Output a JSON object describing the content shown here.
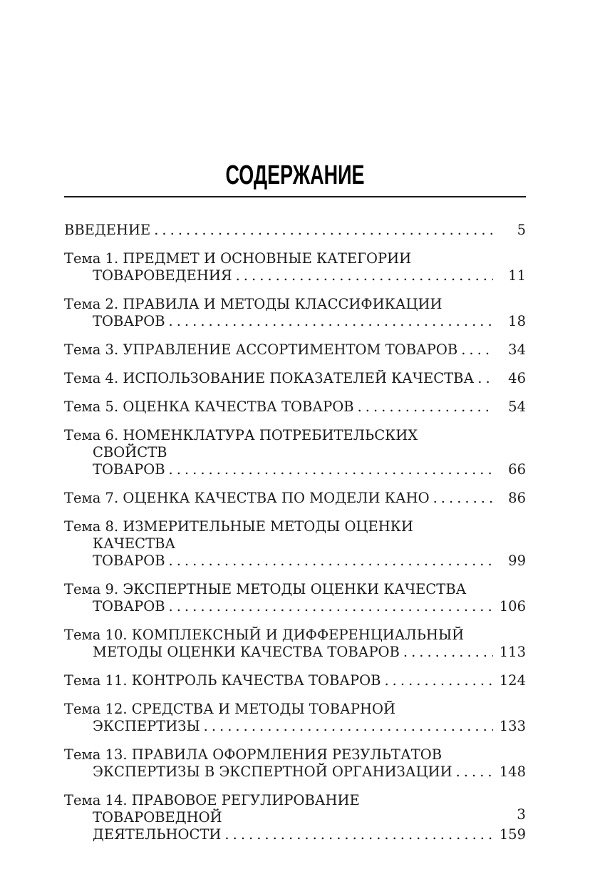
{
  "document": {
    "title": "СОДЕРЖАНИЕ",
    "folio": "3"
  },
  "colors": {
    "text": "#1a1a1a",
    "background": "#ffffff",
    "rule": "#1a1a1a"
  },
  "toc": {
    "entries": [
      {
        "lines": [
          "ВВЕДЕНИЕ"
        ],
        "page": "5"
      },
      {
        "lines": [
          "Тема 1. ПРЕДМЕТ И ОСНОВНЫЕ КАТЕГОРИИ",
          "ТОВАРОВЕДЕНИЯ"
        ],
        "page": "11"
      },
      {
        "lines": [
          "Тема 2. ПРАВИЛА И МЕТОДЫ КЛАССИФИКАЦИИ",
          "ТОВАРОВ"
        ],
        "page": "18"
      },
      {
        "lines": [
          "Тема 3. УПРАВЛЕНИЕ АССОРТИМЕНТОМ ТОВАРОВ"
        ],
        "page": "34"
      },
      {
        "lines": [
          "Тема 4. ИСПОЛЬЗОВАНИЕ ПОКАЗАТЕЛЕЙ КАЧЕСТВА"
        ],
        "page": "46"
      },
      {
        "lines": [
          "Тема 5. ОЦЕНКА КАЧЕСТВА ТОВАРОВ"
        ],
        "page": "54"
      },
      {
        "lines": [
          "Тема 6. НОМЕНКЛАТУРА ПОТРЕБИТЕЛЬСКИХ СВОЙСТВ",
          "ТОВАРОВ"
        ],
        "page": "66"
      },
      {
        "lines": [
          "Тема 7. ОЦЕНКА КАЧЕСТВА ПО МОДЕЛИ КАНО"
        ],
        "page": "86"
      },
      {
        "lines": [
          "Тема 8. ИЗМЕРИТЕЛЬНЫЕ МЕТОДЫ ОЦЕНКИ КАЧЕСТВА",
          "ТОВАРОВ"
        ],
        "page": "99"
      },
      {
        "lines": [
          "Тема 9. ЭКСПЕРТНЫЕ МЕТОДЫ ОЦЕНКИ КАЧЕСТВА",
          "ТОВАРОВ"
        ],
        "page": "106"
      },
      {
        "lines": [
          "Тема 10. КОМПЛЕКСНЫЙ И ДИФФЕРЕНЦИАЛЬНЫЙ",
          "МЕТОДЫ ОЦЕНКИ КАЧЕСТВА ТОВАРОВ"
        ],
        "page": "113"
      },
      {
        "lines": [
          "Тема 11. КОНТРОЛЬ КАЧЕСТВА ТОВАРОВ"
        ],
        "page": "124"
      },
      {
        "lines": [
          "Тема 12. СРЕДСТВА И МЕТОДЫ ТОВАРНОЙ",
          "ЭКСПЕРТИЗЫ"
        ],
        "page": "133"
      },
      {
        "lines": [
          "Тема 13. ПРАВИЛА ОФОРМЛЕНИЯ РЕЗУЛЬТАТОВ",
          "ЭКСПЕРТИЗЫ В ЭКСПЕРТНОЙ ОРГАНИЗАЦИИ"
        ],
        "page": "148"
      },
      {
        "lines": [
          "Тема 14. ПРАВОВОЕ РЕГУЛИРОВАНИЕ ТОВАРОВЕДНОЙ",
          "ДЕЯТЕЛЬНОСТИ"
        ],
        "page": "159"
      }
    ]
  }
}
